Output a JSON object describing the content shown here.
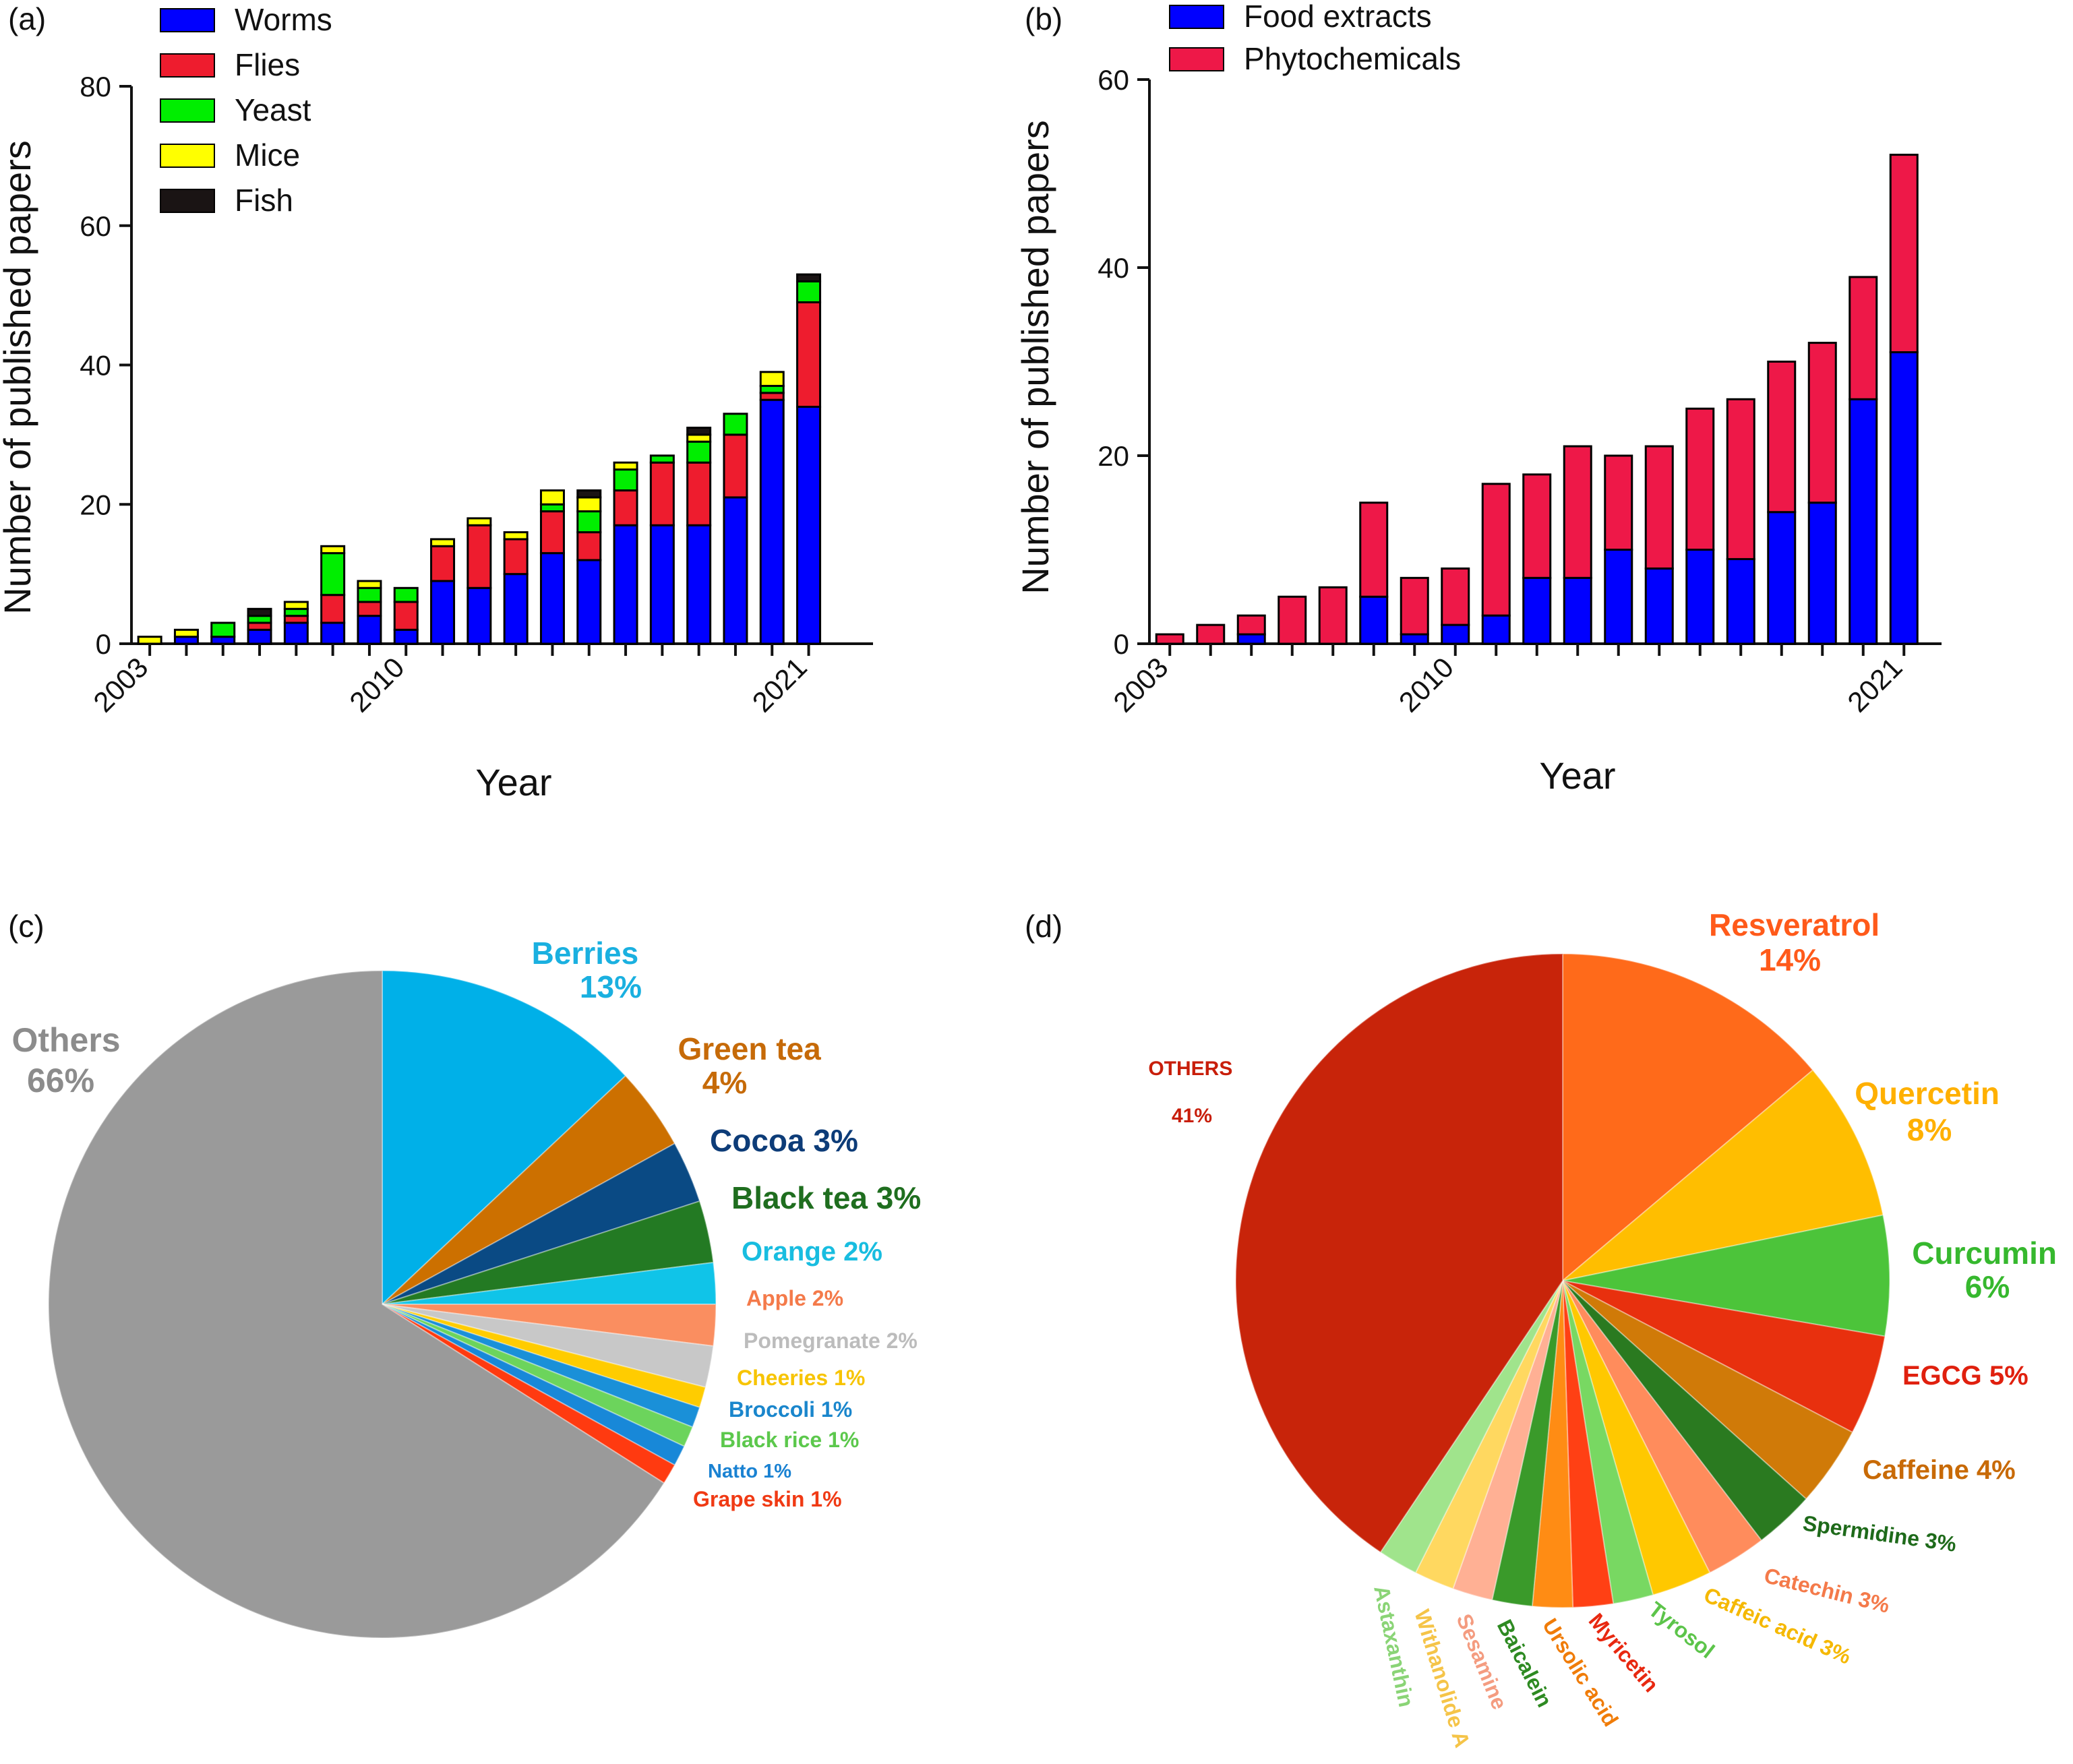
{
  "chart_data": [
    {
      "panel": "(a)",
      "type": "bar",
      "stacked": true,
      "xlabel": "Year",
      "ylabel": "Number of published papers",
      "ylim": [
        0,
        80
      ],
      "yticks": [
        "0",
        "20",
        "40",
        "60",
        "80"
      ],
      "xtick_labels": [
        "2003",
        "2010",
        "2021"
      ],
      "xtick_label_positions": [
        0,
        7,
        18
      ],
      "categories": [
        "2003",
        "2004",
        "2005",
        "2006",
        "2007",
        "2008",
        "2009",
        "2010",
        "2011",
        "2012",
        "2013",
        "2014",
        "2015",
        "2016",
        "2017",
        "2018",
        "2019",
        "2020",
        "2021"
      ],
      "series": [
        {
          "name": "Worms",
          "color": "#0000ff",
          "values": [
            0,
            1,
            1,
            2,
            3,
            3,
            4,
            2,
            9,
            8,
            10,
            13,
            12,
            17,
            17,
            17,
            21,
            35,
            34
          ]
        },
        {
          "name": "Flies",
          "color": "#ee1c2e",
          "values": [
            0,
            0,
            0,
            1,
            1,
            4,
            2,
            4,
            5,
            9,
            5,
            6,
            4,
            5,
            9,
            9,
            9,
            1,
            15
          ]
        },
        {
          "name": "Yeast",
          "color": "#00ee00",
          "values": [
            0,
            0,
            2,
            1,
            1,
            6,
            2,
            2,
            0,
            0,
            0,
            1,
            3,
            3,
            1,
            3,
            3,
            1,
            3
          ]
        },
        {
          "name": "Mice",
          "color": "#ffff00",
          "values": [
            1,
            1,
            0,
            0,
            1,
            1,
            1,
            0,
            1,
            1,
            1,
            2,
            2,
            1,
            0,
            1,
            0,
            2,
            0
          ]
        },
        {
          "name": "Fish",
          "color": "#1a1414",
          "values": [
            0,
            0,
            0,
            1,
            0,
            0,
            0,
            0,
            0,
            0,
            0,
            0,
            1,
            0,
            0,
            1,
            0,
            0,
            1
          ]
        }
      ]
    },
    {
      "panel": "(b)",
      "type": "bar",
      "stacked": true,
      "xlabel": "Year",
      "ylabel": "Number of published papers",
      "ylim": [
        0,
        60
      ],
      "yticks": [
        "0",
        "20",
        "40",
        "60"
      ],
      "xtick_labels": [
        "2003",
        "2010",
        "2021"
      ],
      "xtick_label_positions": [
        0,
        7,
        18
      ],
      "categories": [
        "2003",
        "2004",
        "2005",
        "2006",
        "2007",
        "2008",
        "2009",
        "2010",
        "2011",
        "2012",
        "2013",
        "2014",
        "2015",
        "2016",
        "2017",
        "2018",
        "2019",
        "2020",
        "2021"
      ],
      "series": [
        {
          "name": "Food extracts",
          "color": "#0000ff",
          "values": [
            0,
            0,
            1,
            0,
            0,
            5,
            1,
            2,
            3,
            7,
            7,
            10,
            8,
            10,
            9,
            14,
            15,
            26,
            31
          ]
        },
        {
          "name": "Phytochemicals",
          "color": "#ee1848",
          "values": [
            1,
            2,
            2,
            5,
            6,
            10,
            6,
            6,
            14,
            11,
            14,
            10,
            13,
            15,
            17,
            16,
            17,
            13,
            21
          ]
        }
      ]
    },
    {
      "panel": "(c)",
      "type": "pie",
      "slices": [
        {
          "label": "Berries",
          "pct_text": "13%",
          "value": 13,
          "color": "#00b0e8",
          "label_color": "#1ab0e0"
        },
        {
          "label": "Green tea",
          "pct_text": "4%",
          "value": 4,
          "color": "#cc7000",
          "label_color": "#c66a08"
        },
        {
          "label": "Cocoa 3%",
          "value": 3,
          "color": "#0a4a84",
          "label_color": "#0d3c78"
        },
        {
          "label": "Black tea 3%",
          "value": 3,
          "color": "#237a23",
          "label_color": "#1f6e1f"
        },
        {
          "label": "Orange 2%",
          "value": 2,
          "color": "#10c4e8",
          "label_color": "#18bde0"
        },
        {
          "label": "Apple 2%",
          "value": 2,
          "color": "#fa8e60",
          "label_color": "#f47a4a"
        },
        {
          "label": "Pomegranate 2%",
          "value": 2,
          "color": "#c8c8c8",
          "label_color": "#bcbcbc"
        },
        {
          "label": "Cheeries 1%",
          "value": 1,
          "color": "#ffcc00",
          "label_color": "#f7c400"
        },
        {
          "label": "Broccoli 1%",
          "value": 1,
          "color": "#1a90d8",
          "label_color": "#1a86cc"
        },
        {
          "label": "Black rice 1%",
          "value": 1,
          "color": "#6cd45c",
          "label_color": "#5cc84c"
        },
        {
          "label": "Natto 1%",
          "value": 1,
          "color": "#1888d8",
          "label_color": "#1a82d2"
        },
        {
          "label": "Grape skin 1%",
          "value": 1,
          "color": "#ff3a10",
          "label_color": "#f03a14"
        },
        {
          "label": "Others",
          "pct_text": "66%",
          "value": 66,
          "color": "#9a9a9a",
          "label_color": "#8c8c8c"
        }
      ]
    },
    {
      "panel": "(d)",
      "type": "pie",
      "slices": [
        {
          "label": "Resveratrol",
          "pct_text": "14%",
          "value": 14,
          "color": "#ff6a1a",
          "label_color": "#ff5a1a"
        },
        {
          "label": "Quercetin",
          "pct_text": "8%",
          "value": 8,
          "color": "#ffbe00",
          "label_color": "#ffb000"
        },
        {
          "label": "Curcumin",
          "pct_text": "6%",
          "value": 6,
          "color": "#4cc43a",
          "label_color": "#36b82e"
        },
        {
          "label": "EGCG 5%",
          "value": 5,
          "color": "#e8300e",
          "label_color": "#e0200e"
        },
        {
          "label": "Caffeine 4%",
          "value": 4,
          "color": "#d07a08",
          "label_color": "#c86a06"
        },
        {
          "label": "Spermidine 3%",
          "value": 3,
          "color": "#2a7a20",
          "label_color": "#1e6a1a"
        },
        {
          "label": "Catechin 3%",
          "value": 3,
          "color": "#ff8c5c",
          "label_color": "#f47a4a"
        },
        {
          "label": "Caffeic acid 3%",
          "value": 3,
          "color": "#ffc800",
          "label_color": "#f5b800"
        },
        {
          "label": "Tyrosol",
          "value": 2,
          "color": "#78d862",
          "label_color": "#5cc44a"
        },
        {
          "label": "Myricetin",
          "value": 2,
          "color": "#ff4014",
          "label_color": "#e82810"
        },
        {
          "label": "Ursolic acid",
          "value": 2,
          "color": "#ff8c14",
          "label_color": "#f07c08"
        },
        {
          "label": "Baicalein",
          "value": 2,
          "color": "#3a9a2a",
          "label_color": "#2e8a22"
        },
        {
          "label": "Sesamine",
          "value": 2,
          "color": "#ffb094",
          "label_color": "#f49c80"
        },
        {
          "label": "Withanolide A",
          "value": 2,
          "color": "#ffd860",
          "label_color": "#f5c448"
        },
        {
          "label": "Astaxanthin",
          "value": 2,
          "color": "#a0e48c",
          "label_color": "#8ad476"
        },
        {
          "label": "OTHERS",
          "pct_text": "41%",
          "value": 41,
          "color": "#c8240a",
          "label_color": "#c81e0a"
        }
      ]
    }
  ]
}
